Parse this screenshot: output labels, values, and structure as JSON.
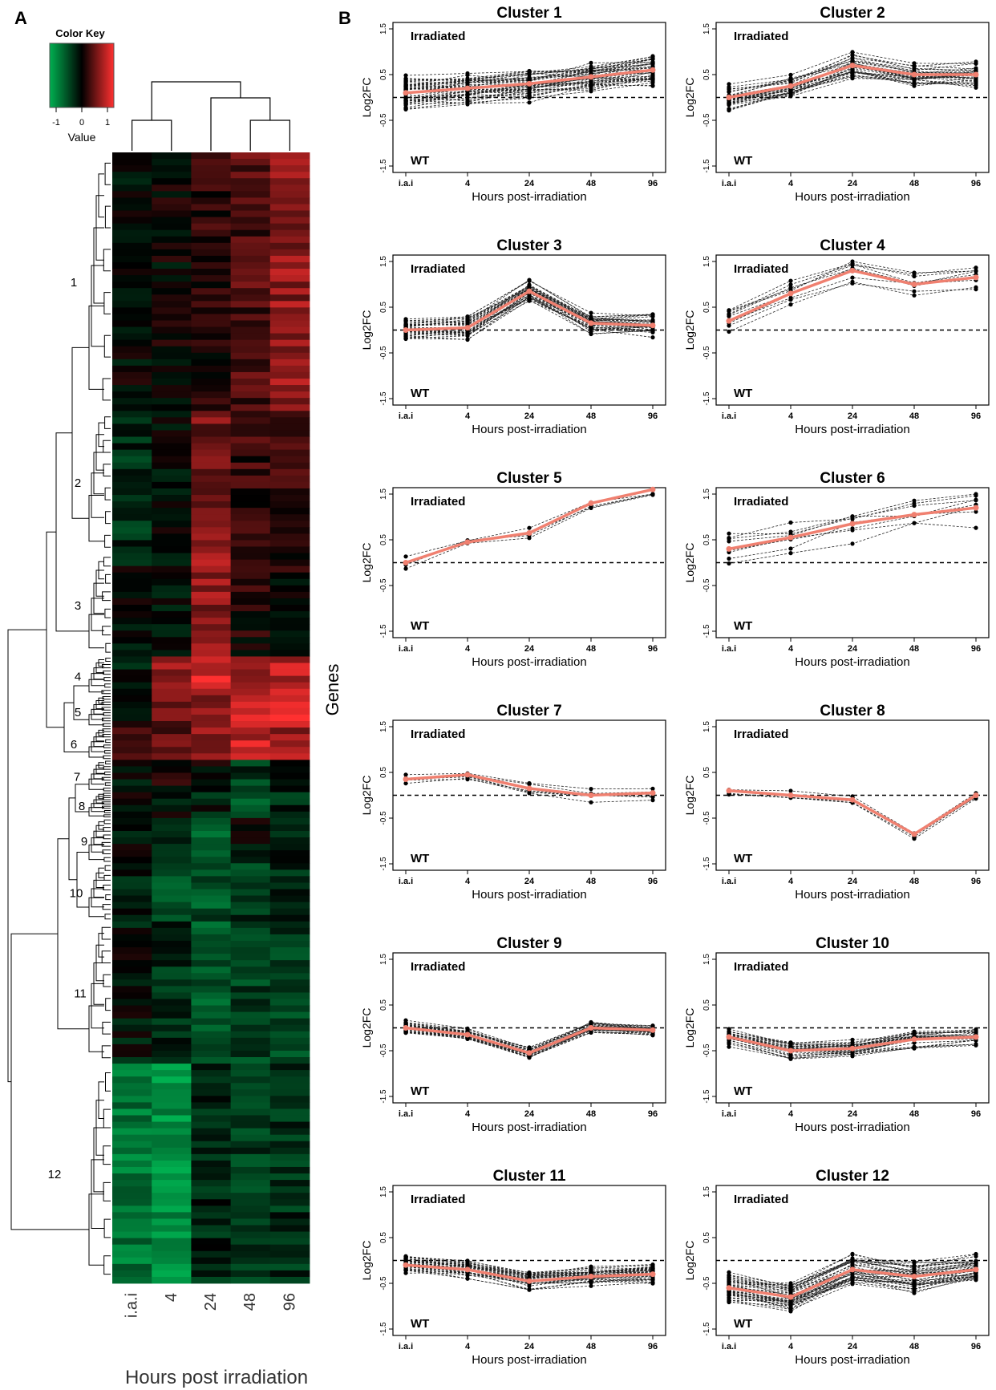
{
  "figure": {
    "panel_a_letter": "A",
    "panel_b_letter": "B",
    "genes_label": "Genes",
    "heatmap_xlabel": "Hours post irradiation",
    "color_key": {
      "title": "Color Key",
      "ticks": [
        "-1",
        "0",
        "1"
      ],
      "label": "Value",
      "low_color": "#00b050",
      "mid_color": "#000000",
      "high_color": "#ff3030"
    }
  },
  "chart_data": [
    {
      "type": "heatmap",
      "panel": "A",
      "columns": [
        "i.a.i",
        "4",
        "24",
        "48",
        "96"
      ],
      "xlabel": "Hours post irradiation",
      "ylabel": "Genes",
      "value_range": [
        -1,
        1
      ],
      "cluster_labels": [
        "1",
        "2",
        "3",
        "4",
        "5",
        "6",
        "7",
        "8",
        "9",
        "10",
        "11",
        "12"
      ],
      "cluster_blocks": [
        {
          "label": "1",
          "rows": 40,
          "values": [
            -0.05,
            0.0,
            0.15,
            0.3,
            0.55
          ]
        },
        {
          "label": "2",
          "rows": 22,
          "values": [
            -0.25,
            -0.1,
            0.45,
            0.2,
            0.2
          ]
        },
        {
          "label": "3",
          "rows": 16,
          "values": [
            -0.1,
            -0.05,
            0.55,
            0.1,
            0.05
          ]
        },
        {
          "label": "4",
          "rows": 6,
          "values": [
            -0.1,
            0.55,
            0.85,
            0.6,
            0.7
          ]
        },
        {
          "label": "5",
          "rows": 5,
          "values": [
            -0.1,
            0.4,
            0.45,
            0.75,
            0.95
          ]
        },
        {
          "label": "6",
          "rows": 5,
          "values": [
            0.35,
            0.35,
            0.55,
            0.75,
            0.6
          ]
        },
        {
          "label": "7",
          "rows": 5,
          "values": [
            -0.05,
            0.05,
            0.05,
            -0.3,
            -0.05
          ]
        },
        {
          "label": "8",
          "rows": 4,
          "values": [
            0.0,
            -0.05,
            -0.15,
            -0.55,
            -0.2
          ]
        },
        {
          "label": "9",
          "rows": 7,
          "values": [
            -0.05,
            -0.15,
            -0.6,
            -0.05,
            -0.2
          ]
        },
        {
          "label": "10",
          "rows": 9,
          "values": [
            -0.2,
            -0.5,
            -0.45,
            -0.3,
            -0.25
          ]
        },
        {
          "label": "11",
          "rows": 22,
          "values": [
            -0.1,
            -0.25,
            -0.5,
            -0.35,
            -0.35
          ]
        },
        {
          "label": "12",
          "rows": 34,
          "values": [
            -0.65,
            -0.8,
            -0.2,
            -0.3,
            -0.25
          ]
        }
      ]
    },
    {
      "type": "line",
      "panel": "B",
      "x": [
        "i.a.i",
        "4",
        "24",
        "48",
        "96"
      ],
      "xlabel": "Hours post-irradiation",
      "ylabel": "Log2FC",
      "ylim": [
        -1.5,
        1.5
      ],
      "yticks": [
        "-1.5",
        "-0.5",
        "0.5",
        "1.5"
      ],
      "top_annotation": "Irradiated",
      "bottom_annotation": "WT",
      "reference_line": 0,
      "mean_color": "#f08070",
      "panels": [
        {
          "title": "Cluster 1",
          "mean": [
            0.1,
            0.2,
            0.3,
            0.45,
            0.6
          ],
          "n_genes": 42,
          "spread": 0.28
        },
        {
          "title": "Cluster 2",
          "mean": [
            0.0,
            0.25,
            0.7,
            0.5,
            0.5
          ],
          "n_genes": 30,
          "spread": 0.2
        },
        {
          "title": "Cluster 3",
          "mean": [
            0.0,
            0.05,
            0.85,
            0.15,
            0.1
          ],
          "n_genes": 32,
          "spread": 0.22
        },
        {
          "title": "Cluster 4",
          "mean": [
            0.2,
            0.8,
            1.3,
            1.0,
            1.15
          ],
          "n_genes": 10,
          "spread": 0.2
        },
        {
          "title": "Cluster 5",
          "mean": [
            0.0,
            0.45,
            0.65,
            1.3,
            1.6
          ],
          "n_genes": 4,
          "spread": 0.15
        },
        {
          "title": "Cluster 6",
          "mean": [
            0.3,
            0.55,
            0.85,
            1.05,
            1.2
          ],
          "n_genes": 8,
          "spread": 0.3
        },
        {
          "title": "Cluster 7",
          "mean": [
            0.35,
            0.45,
            0.15,
            0.0,
            0.05
          ],
          "n_genes": 6,
          "spread": 0.12
        },
        {
          "title": "Cluster 8",
          "mean": [
            0.1,
            0.0,
            -0.1,
            -0.85,
            0.0
          ],
          "n_genes": 4,
          "spread": 0.08
        },
        {
          "title": "Cluster 9",
          "mean": [
            0.0,
            -0.15,
            -0.55,
            0.0,
            -0.05
          ],
          "n_genes": 26,
          "spread": 0.12
        },
        {
          "title": "Cluster 10",
          "mean": [
            -0.2,
            -0.5,
            -0.45,
            -0.25,
            -0.2
          ],
          "n_genes": 30,
          "spread": 0.15
        },
        {
          "title": "Cluster 11",
          "mean": [
            -0.1,
            -0.2,
            -0.45,
            -0.35,
            -0.3
          ],
          "n_genes": 36,
          "spread": 0.15
        },
        {
          "title": "Cluster 12",
          "mean": [
            -0.6,
            -0.8,
            -0.2,
            -0.35,
            -0.2
          ],
          "n_genes": 40,
          "spread": 0.25
        }
      ]
    }
  ]
}
